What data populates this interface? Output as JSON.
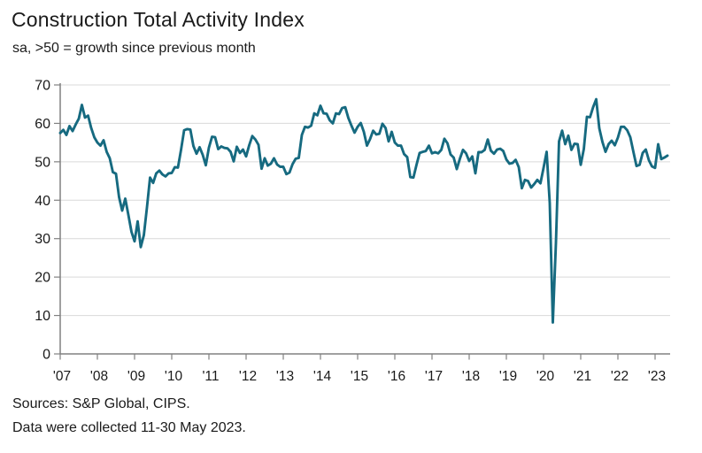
{
  "header": {
    "title": "Construction Total Activity Index",
    "subtitle": "sa, >50 = growth since previous month"
  },
  "footer": {
    "sources": "Sources: S&P Global, CIPS.",
    "note": "Data were collected 11-30 May 2023."
  },
  "colors": {
    "line": "#166a80",
    "grid": "#d9d9d9",
    "axis": "#808080",
    "text": "#1a1a1a"
  },
  "chart_data": {
    "type": "line",
    "title": "Construction Total Activity Index",
    "subtitle": "sa, >50 = growth since previous month",
    "source": "Sources: S&P Global, CIPS.",
    "note": "Data were collected 11-30 May 2023.",
    "x_unit": "month",
    "x_start": "2007-01",
    "x_end": "2023-05",
    "x_tick_labels": [
      "'07",
      "'08",
      "'09",
      "'10",
      "'11",
      "'12",
      "'13",
      "'14",
      "'15",
      "'16",
      "'17",
      "'18",
      "'19",
      "'20",
      "'21",
      "'22",
      "'23"
    ],
    "ylim": [
      0,
      70
    ],
    "y_ticks": [
      0,
      10,
      20,
      30,
      40,
      50,
      60,
      70
    ],
    "grid": "horizontal",
    "legend": "none",
    "line_color": "#166a80",
    "series": [
      {
        "name": "Construction Total Activity Index",
        "values": [
          57.5,
          58.3,
          57.0,
          59.3,
          58.0,
          59.7,
          61.2,
          64.8,
          61.5,
          62.0,
          58.8,
          56.4,
          55.0,
          54.2,
          55.6,
          52.6,
          50.9,
          47.3,
          46.9,
          40.8,
          37.3,
          40.4,
          36.2,
          31.8,
          29.3,
          34.5,
          27.8,
          30.9,
          38.1,
          45.9,
          44.5,
          47.0,
          47.7,
          46.7,
          46.2,
          47.0,
          47.1,
          48.6,
          48.5,
          53.1,
          58.2,
          58.5,
          58.4,
          54.1,
          52.1,
          53.8,
          51.8,
          49.1,
          53.7,
          56.5,
          56.4,
          53.3,
          54.0,
          53.6,
          53.5,
          52.6,
          50.1,
          53.9,
          52.3,
          53.2,
          51.4,
          54.3,
          56.7,
          55.8,
          54.4,
          48.2,
          50.9,
          49.0,
          49.5,
          50.9,
          49.3,
          48.7,
          48.7,
          46.8,
          47.2,
          49.4,
          50.8,
          51.0,
          57.0,
          59.1,
          58.9,
          59.4,
          62.6,
          62.1,
          64.6,
          62.6,
          62.5,
          60.8,
          60.0,
          62.6,
          62.4,
          64.0,
          64.2,
          61.4,
          59.4,
          57.6,
          59.1,
          60.1,
          57.8,
          54.2,
          55.9,
          58.1,
          57.1,
          57.3,
          59.9,
          58.8,
          55.3,
          57.8,
          55.0,
          54.2,
          54.2,
          52.0,
          51.2,
          46.0,
          45.9,
          49.2,
          52.3,
          52.6,
          52.8,
          54.2,
          52.2,
          52.5,
          52.2,
          53.1,
          56.0,
          54.8,
          51.9,
          51.1,
          48.1,
          50.8,
          53.1,
          52.2,
          50.2,
          51.4,
          47.0,
          52.5,
          52.5,
          53.1,
          55.8,
          52.9,
          52.1,
          53.2,
          53.4,
          52.8,
          50.6,
          49.5,
          49.7,
          50.5,
          48.6,
          43.1,
          45.3,
          45.0,
          43.3,
          44.2,
          45.3,
          44.4,
          48.4,
          52.6,
          39.3,
          8.2,
          28.9,
          55.3,
          58.1,
          54.6,
          56.8,
          53.1,
          54.7,
          54.6,
          49.2,
          53.3,
          61.7,
          61.6,
          64.2,
          66.3,
          58.7,
          55.2,
          52.6,
          54.6,
          55.5,
          54.3,
          56.3,
          59.1,
          59.1,
          58.2,
          56.4,
          52.6,
          48.9,
          49.2,
          52.3,
          53.2,
          50.4,
          48.8,
          48.4,
          54.6,
          50.7,
          51.1,
          51.6
        ]
      }
    ]
  }
}
